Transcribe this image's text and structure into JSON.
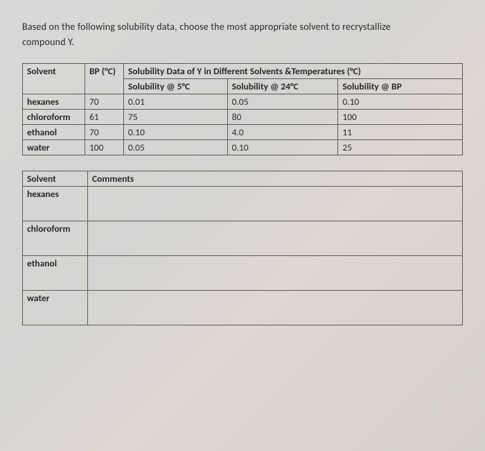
{
  "question": {
    "line1": "Based on the following solubility data, choose the most appropriate solvent to recrystallize",
    "line2": "compound Y."
  },
  "dataTable": {
    "headers": {
      "solvent": "Solvent",
      "bp": "BP (°C)",
      "span": "Solubility Data of Y in Different Solvents &Temperatures (°C)",
      "s5": "Solubility @ 5°C",
      "s24": "Solubility @ 24°C",
      "sbp": "Solubility @ BP"
    },
    "rows": [
      {
        "solvent": "hexanes",
        "bp": "70",
        "s5": "0.01",
        "s24": "0.05",
        "sbp": "0.10"
      },
      {
        "solvent": "chloroform",
        "bp": "61",
        "s5": "75",
        "s24": "80",
        "sbp": "100"
      },
      {
        "solvent": "ethanol",
        "bp": "70",
        "s5": "0.10",
        "s24": "4.0",
        "sbp": "11"
      },
      {
        "solvent": "water",
        "bp": "100",
        "s5": "0.05",
        "s24": "0.10",
        "sbp": "25"
      }
    ]
  },
  "commentsTable": {
    "headers": {
      "solvent": "Solvent",
      "comments": "Comments"
    },
    "rows": [
      {
        "solvent": "hexanes",
        "comments": ""
      },
      {
        "solvent": "chloroform",
        "comments": ""
      },
      {
        "solvent": "ethanol",
        "comments": ""
      },
      {
        "solvent": "water",
        "comments": ""
      }
    ]
  },
  "style": {
    "text_color": "#2a2a2a",
    "border_color": "#5a5a5a",
    "font_family": "Calibri"
  }
}
